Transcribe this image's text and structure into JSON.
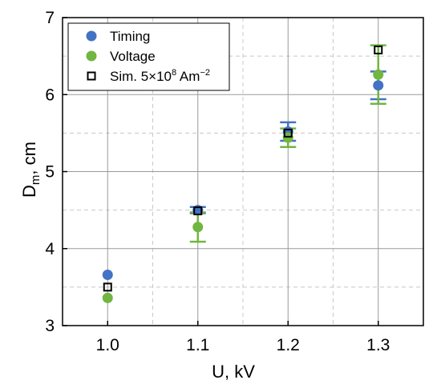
{
  "chart_data": {
    "type": "scatter",
    "xlabel": "U, kV",
    "ylabel_main": "D",
    "ylabel_sub": "m",
    "ylabel_rest": ", cm",
    "xlim": [
      0.95,
      1.35
    ],
    "ylim": [
      3,
      7
    ],
    "x_ticks": [
      1.0,
      1.1,
      1.2,
      1.3
    ],
    "x_tick_labels": [
      "1.0",
      "1.1",
      "1.2",
      "1.3"
    ],
    "y_ticks": [
      3,
      4,
      5,
      6,
      7
    ],
    "y_tick_labels": [
      "3",
      "4",
      "5",
      "6",
      "7"
    ],
    "major_grid": true,
    "minor_grid": true,
    "legend_position": "top-left",
    "series": [
      {
        "name": "Timing",
        "marker": "filled-circle",
        "color": "#4472c4",
        "points": [
          {
            "x": 1.0,
            "y": 3.66,
            "err": 0
          },
          {
            "x": 1.1,
            "y": 4.5,
            "err": 0.04
          },
          {
            "x": 1.2,
            "y": 5.52,
            "err": 0.12
          },
          {
            "x": 1.3,
            "y": 6.12,
            "err": 0.18
          }
        ]
      },
      {
        "name": "Voltage",
        "marker": "filled-circle",
        "color": "#70b640",
        "points": [
          {
            "x": 1.0,
            "y": 3.36,
            "err": 0
          },
          {
            "x": 1.1,
            "y": 4.28,
            "err": 0.19
          },
          {
            "x": 1.2,
            "y": 5.44,
            "err": 0.12
          },
          {
            "x": 1.3,
            "y": 6.26,
            "err": 0.38
          }
        ]
      },
      {
        "name_main": "Sim. 5×10",
        "name_sup": "8",
        "name_unit": " Am",
        "name_unit_sup": "−2",
        "marker": "open-square",
        "color": "#000000",
        "points": [
          {
            "x": 1.0,
            "y": 3.5
          },
          {
            "x": 1.1,
            "y": 4.49
          },
          {
            "x": 1.2,
            "y": 5.5
          },
          {
            "x": 1.3,
            "y": 6.58
          }
        ]
      }
    ]
  }
}
